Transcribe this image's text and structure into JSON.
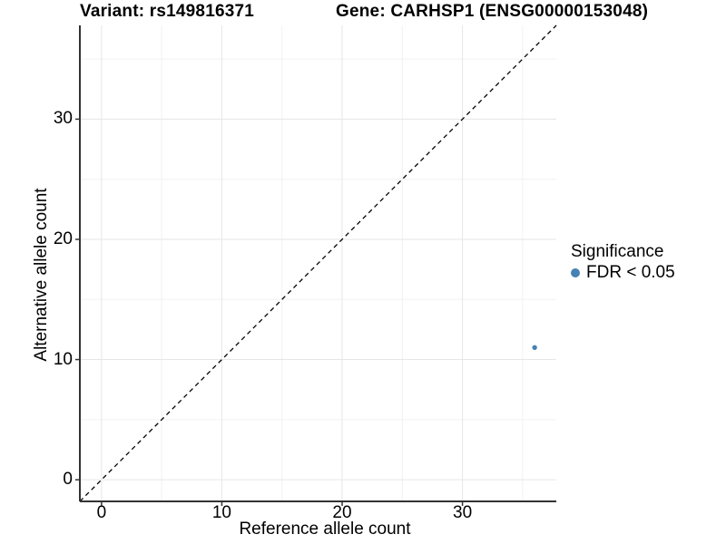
{
  "chart_data": {
    "type": "scatter",
    "title_left": "Variant: rs149816371",
    "title_right": "Gene: CARHSP1 (ENSG00000153048)",
    "xlabel": "Reference allele count",
    "ylabel": "Alternative allele count",
    "xlim": [
      -1.8,
      37.8
    ],
    "ylim": [
      -1.8,
      37.8
    ],
    "xticks": [
      0,
      10,
      20,
      30
    ],
    "yticks": [
      0,
      10,
      20,
      30
    ],
    "xticks_minor": [
      5,
      15,
      25,
      35
    ],
    "yticks_minor": [
      5,
      15,
      25,
      35
    ],
    "grid": true,
    "points": [
      {
        "x": 36,
        "y": 11,
        "series": "FDR < 0.05"
      }
    ],
    "reference_line": {
      "type": "identity y = x",
      "style": "dashed",
      "color": "#000000"
    },
    "legend": {
      "title": "Significance",
      "position": "right",
      "items": [
        {
          "label": "FDR < 0.05",
          "color": "#4682B4"
        }
      ]
    },
    "colors": {
      "point": "#4682B4",
      "grid_major": "#e6e6e6",
      "grid_minor": "#f2f2f2",
      "axis": "#333333",
      "text": "#000000",
      "background": "#ffffff"
    }
  }
}
